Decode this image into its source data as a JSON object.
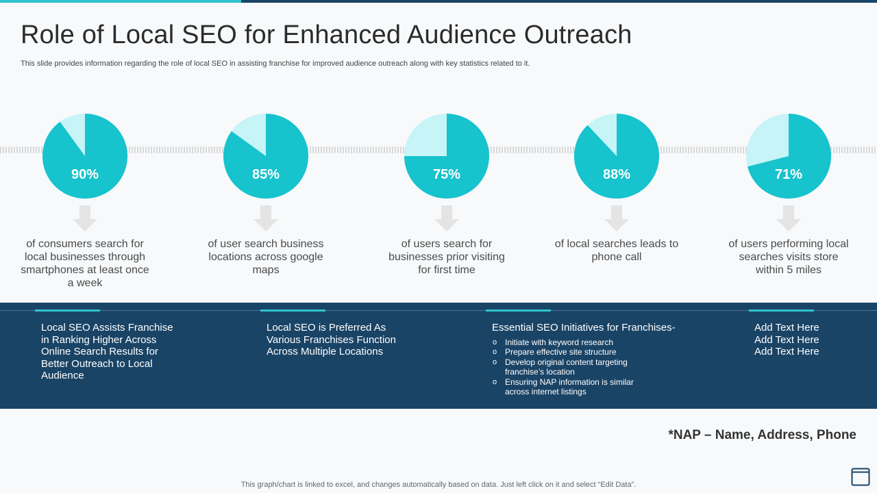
{
  "title": "Role of Local SEO for Enhanced Audience Outreach",
  "subtitle": "This slide provides information regarding the role of local SEO  in assisting franchise for improved audience outreach along with key statistics related to it.",
  "colors": {
    "primary": "#17c3cc",
    "light": "#c6f4f7",
    "band": "#1a4466",
    "accent": "#2ec4cf"
  },
  "chart_data": {
    "type": "pie",
    "charts": [
      {
        "value": 90,
        "label": "90%",
        "description": "of consumers search for local businesses through smartphones at least once a week"
      },
      {
        "value": 85,
        "label": "85%",
        "description": "of user search business locations across google maps"
      },
      {
        "value": 75,
        "label": "75%",
        "description": "of users search for businesses prior visiting for first time"
      },
      {
        "value": 88,
        "label": "88%",
        "description": "of local searches leads to phone call"
      },
      {
        "value": 71,
        "label": "71%",
        "description": "of users performing local searches visits store within 5 miles"
      }
    ]
  },
  "band": {
    "block1": "Local SEO Assists Franchise in Ranking Higher Across Online Search  Results for Better Outreach to Local Audience",
    "block2": "Local SEO is Preferred As Various Franchises Function Across Multiple  Locations",
    "block3": {
      "heading": "Essential SEO Initiatives for Franchises-",
      "items": [
        "Initiate with keyword research",
        "Prepare effective site structure",
        "Develop original content targeting franchise’s location",
        "Ensuring NAP information is similar across internet listings"
      ]
    },
    "block4": [
      "Add Text Here",
      "Add Text Here",
      "Add Text Here"
    ]
  },
  "note": "*NAP – Name, Address, Phone",
  "footer": "This graph/chart is linked to excel,  and changes automatically based on data. Just left click on it and select “Edit Data”.",
  "icons": {
    "arrow": "down-arrow-icon",
    "corner": "document-icon"
  }
}
